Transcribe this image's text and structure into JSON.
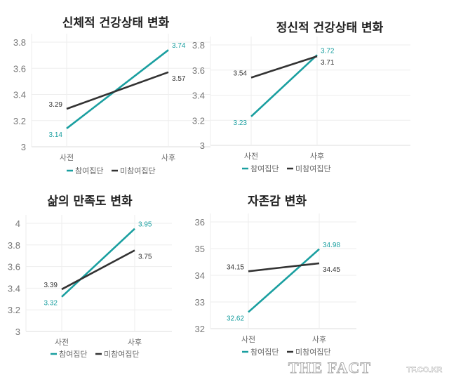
{
  "colors": {
    "participant": "#1a9fa0",
    "non_participant": "#333333",
    "grid": "#eeeeee"
  },
  "legend": [
    "참여집단",
    "미참여집단"
  ],
  "watermark": {
    "site": "TF.CO.KR",
    "brand": "THE FACT"
  },
  "chart_data": [
    {
      "type": "line",
      "title": "신체적 건강상태 변화",
      "categories": [
        "사전",
        "사후"
      ],
      "ylim": [
        3,
        3.9
      ],
      "yticks": [
        "3",
        "3.2",
        "3.4",
        "3.6",
        "3.8"
      ],
      "grid": true,
      "legend": "bottom",
      "series": [
        {
          "name": "참여집단",
          "values": [
            3.14,
            3.74
          ],
          "labels": [
            "3.14",
            "3.74"
          ]
        },
        {
          "name": "미참여집단",
          "values": [
            3.29,
            3.57
          ],
          "labels": [
            "3.29",
            "3.57"
          ]
        }
      ]
    },
    {
      "type": "line",
      "title": "정신적 건강상태 변화",
      "categories": [
        "사전",
        "사후"
      ],
      "ylim": [
        3,
        3.9
      ],
      "yticks": [
        "3",
        "3.2",
        "3.4",
        "3.6",
        "3.8"
      ],
      "grid": true,
      "legend": "bottom",
      "series": [
        {
          "name": "참여집단",
          "values": [
            3.23,
            3.72
          ],
          "labels": [
            "3.23",
            "3.72"
          ]
        },
        {
          "name": "미참여집단",
          "values": [
            3.54,
            3.71
          ],
          "labels": [
            "3.54",
            "3.71"
          ]
        }
      ]
    },
    {
      "type": "line",
      "title": "삶의 만족도 변화",
      "categories": [
        "사전",
        "사후"
      ],
      "ylim": [
        3,
        4
      ],
      "yticks": [
        "3",
        "3.2",
        "3.4",
        "3.6",
        "3.8",
        "4"
      ],
      "grid": true,
      "legend": "bottom",
      "series": [
        {
          "name": "참여집단",
          "values": [
            3.32,
            3.95
          ],
          "labels": [
            "3.32",
            "3.95"
          ]
        },
        {
          "name": "미참여집단",
          "values": [
            3.39,
            3.75
          ],
          "labels": [
            "3.39",
            "3.75"
          ]
        }
      ]
    },
    {
      "type": "line",
      "title": "자존감 변화",
      "categories": [
        "사전",
        "사후"
      ],
      "ylim": [
        32,
        36
      ],
      "yticks": [
        "32",
        "33",
        "34",
        "35",
        "36"
      ],
      "grid": true,
      "legend": "bottom",
      "series": [
        {
          "name": "참여집단",
          "values": [
            32.62,
            34.98
          ],
          "labels": [
            "32.62",
            "34.98"
          ]
        },
        {
          "name": "미참여집단",
          "values": [
            34.15,
            34.45
          ],
          "labels": [
            "34.15",
            "34.45"
          ]
        }
      ]
    }
  ]
}
